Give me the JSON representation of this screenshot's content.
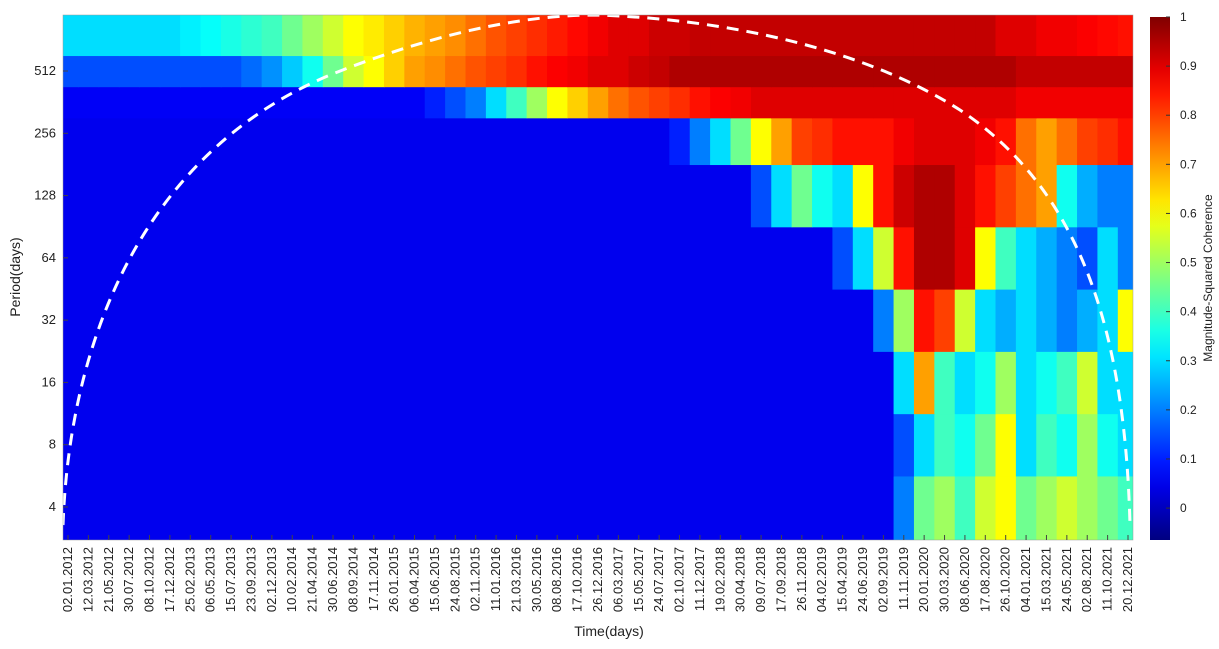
{
  "chart_data": {
    "type": "heatmap",
    "x_label": "Time(days)",
    "y_label": "Period(days)",
    "colorbar_label": "Magnitude-Squared Coherence",
    "colormap": "jet",
    "log_y": true,
    "categories": [
      "02.01.2012",
      "12.03.2012",
      "21.05.2012",
      "30.07.2012",
      "08.10.2012",
      "17.12.2012",
      "25.02.2013",
      "06.05.2013",
      "15.07.2013",
      "23.09.2013",
      "02.12.2013",
      "10.02.2014",
      "21.04.2014",
      "30.06.2014",
      "08.09.2014",
      "17.11.2014",
      "26.01.2015",
      "06.04.2015",
      "15.06.2015",
      "24.08.2015",
      "02.11.2015",
      "11.01.2016",
      "21.03.2016",
      "30.05.2016",
      "08.08.2016",
      "17.10.2016",
      "26.12.2016",
      "06.03.2017",
      "15.05.2017",
      "24.07.2017",
      "02.10.2017",
      "11.12.2017",
      "19.02.2018",
      "30.04.2018",
      "09.07.2018",
      "17.09.2018",
      "26.11.2018",
      "04.02.2019",
      "15.04.2019",
      "24.06.2019",
      "02.09.2019",
      "11.11.2019",
      "20.01.2020",
      "30.03.2020",
      "08.06.2020",
      "17.08.2020",
      "26.10.2020",
      "04.01.2021",
      "15.03.2021",
      "24.05.2021",
      "02.08.2021",
      "11.10.2021",
      "20.12.2021"
    ],
    "periods": [
      4,
      8,
      16,
      32,
      64,
      128,
      256,
      362,
      512,
      724
    ],
    "z": [
      [
        0.05,
        0.05,
        0.05,
        0.05,
        0.05,
        0.05,
        0.05,
        0.05,
        0.05,
        0.05,
        0.05,
        0.05,
        0.05,
        0.05,
        0.05,
        0.05,
        0.05,
        0.05,
        0.05,
        0.05,
        0.05,
        0.05,
        0.05,
        0.05,
        0.05,
        0.05,
        0.05,
        0.05,
        0.05,
        0.05,
        0.05,
        0.05,
        0.05,
        0.05,
        0.05,
        0.05,
        0.05,
        0.05,
        0.05,
        0.05,
        0.05,
        0.2,
        0.45,
        0.5,
        0.4,
        0.55,
        0.6,
        0.45,
        0.5,
        0.55,
        0.5,
        0.45,
        0.4
      ],
      [
        0.05,
        0.05,
        0.05,
        0.05,
        0.05,
        0.05,
        0.05,
        0.05,
        0.05,
        0.05,
        0.05,
        0.05,
        0.05,
        0.05,
        0.05,
        0.05,
        0.05,
        0.05,
        0.05,
        0.05,
        0.05,
        0.05,
        0.05,
        0.05,
        0.05,
        0.05,
        0.05,
        0.05,
        0.05,
        0.05,
        0.05,
        0.05,
        0.05,
        0.05,
        0.05,
        0.05,
        0.05,
        0.05,
        0.05,
        0.05,
        0.05,
        0.15,
        0.3,
        0.4,
        0.35,
        0.45,
        0.6,
        0.3,
        0.4,
        0.35,
        0.5,
        0.35,
        0.3
      ],
      [
        0.05,
        0.05,
        0.05,
        0.05,
        0.05,
        0.05,
        0.05,
        0.05,
        0.05,
        0.05,
        0.05,
        0.05,
        0.05,
        0.05,
        0.05,
        0.05,
        0.05,
        0.05,
        0.05,
        0.05,
        0.05,
        0.05,
        0.05,
        0.05,
        0.05,
        0.05,
        0.05,
        0.05,
        0.05,
        0.05,
        0.05,
        0.05,
        0.05,
        0.05,
        0.05,
        0.05,
        0.05,
        0.05,
        0.05,
        0.05,
        0.05,
        0.3,
        0.7,
        0.4,
        0.3,
        0.35,
        0.5,
        0.3,
        0.35,
        0.4,
        0.55,
        0.3,
        0.3
      ],
      [
        0.05,
        0.05,
        0.05,
        0.05,
        0.05,
        0.05,
        0.05,
        0.05,
        0.05,
        0.05,
        0.05,
        0.05,
        0.05,
        0.05,
        0.05,
        0.05,
        0.05,
        0.05,
        0.05,
        0.05,
        0.05,
        0.05,
        0.05,
        0.05,
        0.05,
        0.05,
        0.05,
        0.05,
        0.05,
        0.05,
        0.05,
        0.05,
        0.05,
        0.05,
        0.05,
        0.05,
        0.05,
        0.05,
        0.05,
        0.05,
        0.2,
        0.5,
        0.85,
        0.8,
        0.55,
        0.3,
        0.25,
        0.3,
        0.25,
        0.2,
        0.25,
        0.3,
        0.6
      ],
      [
        0.05,
        0.05,
        0.05,
        0.05,
        0.05,
        0.05,
        0.05,
        0.05,
        0.05,
        0.05,
        0.05,
        0.05,
        0.05,
        0.05,
        0.05,
        0.05,
        0.05,
        0.05,
        0.05,
        0.05,
        0.05,
        0.05,
        0.05,
        0.05,
        0.05,
        0.05,
        0.05,
        0.05,
        0.05,
        0.05,
        0.05,
        0.05,
        0.05,
        0.05,
        0.05,
        0.05,
        0.05,
        0.05,
        0.15,
        0.3,
        0.55,
        0.85,
        0.95,
        0.95,
        0.9,
        0.6,
        0.4,
        0.3,
        0.25,
        0.2,
        0.15,
        0.3,
        0.2
      ],
      [
        0.05,
        0.05,
        0.05,
        0.05,
        0.05,
        0.05,
        0.05,
        0.05,
        0.05,
        0.05,
        0.05,
        0.05,
        0.05,
        0.05,
        0.05,
        0.05,
        0.05,
        0.05,
        0.05,
        0.05,
        0.05,
        0.05,
        0.05,
        0.05,
        0.05,
        0.05,
        0.05,
        0.05,
        0.05,
        0.05,
        0.05,
        0.05,
        0.05,
        0.05,
        0.15,
        0.3,
        0.45,
        0.35,
        0.3,
        0.6,
        0.85,
        0.92,
        0.95,
        0.95,
        0.9,
        0.85,
        0.8,
        0.75,
        0.7,
        0.35,
        0.25,
        0.2,
        0.2
      ],
      [
        0.05,
        0.05,
        0.05,
        0.05,
        0.05,
        0.05,
        0.05,
        0.05,
        0.05,
        0.05,
        0.05,
        0.05,
        0.05,
        0.05,
        0.05,
        0.05,
        0.05,
        0.05,
        0.05,
        0.05,
        0.05,
        0.05,
        0.05,
        0.05,
        0.05,
        0.05,
        0.05,
        0.05,
        0.05,
        0.05,
        0.1,
        0.2,
        0.3,
        0.45,
        0.6,
        0.7,
        0.8,
        0.82,
        0.85,
        0.85,
        0.85,
        0.88,
        0.9,
        0.9,
        0.9,
        0.88,
        0.85,
        0.75,
        0.7,
        0.75,
        0.8,
        0.82,
        0.85
      ],
      [
        0.06,
        0.06,
        0.06,
        0.06,
        0.06,
        0.06,
        0.06,
        0.06,
        0.06,
        0.06,
        0.06,
        0.06,
        0.06,
        0.06,
        0.06,
        0.06,
        0.06,
        0.06,
        0.1,
        0.15,
        0.2,
        0.3,
        0.4,
        0.5,
        0.6,
        0.65,
        0.7,
        0.75,
        0.78,
        0.8,
        0.82,
        0.85,
        0.87,
        0.88,
        0.9,
        0.9,
        0.9,
        0.9,
        0.9,
        0.9,
        0.9,
        0.9,
        0.9,
        0.9,
        0.9,
        0.9,
        0.9,
        0.88,
        0.88,
        0.88,
        0.88,
        0.88,
        0.88
      ],
      [
        0.15,
        0.15,
        0.15,
        0.15,
        0.15,
        0.15,
        0.15,
        0.15,
        0.15,
        0.18,
        0.22,
        0.28,
        0.35,
        0.45,
        0.55,
        0.6,
        0.65,
        0.7,
        0.72,
        0.75,
        0.78,
        0.8,
        0.82,
        0.85,
        0.87,
        0.88,
        0.9,
        0.9,
        0.92,
        0.93,
        0.95,
        0.95,
        0.95,
        0.95,
        0.95,
        0.95,
        0.95,
        0.95,
        0.95,
        0.95,
        0.95,
        0.95,
        0.95,
        0.95,
        0.95,
        0.95,
        0.95,
        0.93,
        0.93,
        0.93,
        0.93,
        0.93,
        0.93
      ],
      [
        0.3,
        0.3,
        0.3,
        0.3,
        0.3,
        0.3,
        0.32,
        0.34,
        0.36,
        0.38,
        0.4,
        0.45,
        0.5,
        0.55,
        0.6,
        0.62,
        0.65,
        0.68,
        0.7,
        0.72,
        0.75,
        0.78,
        0.8,
        0.82,
        0.84,
        0.86,
        0.88,
        0.9,
        0.9,
        0.92,
        0.92,
        0.93,
        0.93,
        0.93,
        0.93,
        0.93,
        0.93,
        0.93,
        0.93,
        0.93,
        0.93,
        0.93,
        0.93,
        0.93,
        0.93,
        0.93,
        0.9,
        0.9,
        0.88,
        0.88,
        0.87,
        0.86,
        0.85
      ]
    ],
    "ylim": [
      2.77,
      955
    ],
    "yticks": [
      4,
      8,
      16,
      32,
      64,
      128,
      256,
      512
    ],
    "zlim": [
      -0.065,
      1
    ],
    "zticks": [
      0,
      0.1,
      0.2,
      0.3,
      0.4,
      0.5,
      0.6,
      0.7,
      0.8,
      0.9,
      1
    ]
  }
}
